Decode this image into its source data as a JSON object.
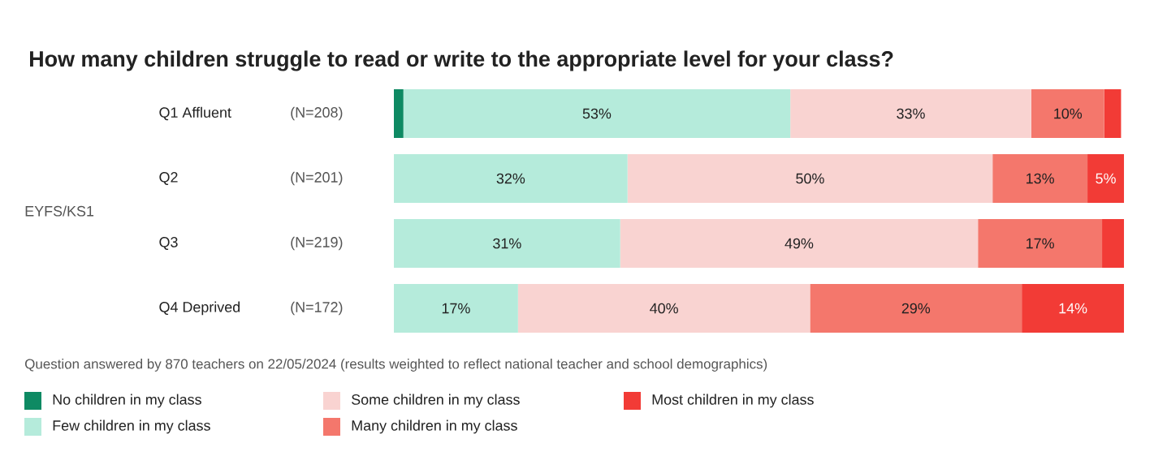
{
  "chart_data": {
    "type": "bar",
    "orientation": "horizontal",
    "stacked": true,
    "title": "How many children struggle to read or write to the appropriate level for your class?",
    "categories": [
      "Q1 Affluent",
      "Q2",
      "Q3",
      "Q4 Deprived"
    ],
    "series": [
      {
        "name": "No children in my class",
        "color": "#0e8a63",
        "values": [
          1.3,
          0,
          0,
          0
        ],
        "value_labels": [
          null,
          null,
          null,
          null
        ]
      },
      {
        "name": "Few children in my class",
        "color": "#b5ebdb",
        "values": [
          53,
          32,
          31,
          17
        ],
        "value_labels": [
          "53%",
          "32%",
          "31%",
          "17%"
        ]
      },
      {
        "name": "Some children in my class",
        "color": "#f9d3d1",
        "values": [
          33,
          50,
          49,
          40
        ],
        "value_labels": [
          "33%",
          "50%",
          "49%",
          "40%"
        ]
      },
      {
        "name": "Many children in my class",
        "color": "#f4776c",
        "values": [
          10,
          13,
          17,
          29
        ],
        "value_labels": [
          "10%",
          "13%",
          "17%",
          "29%"
        ]
      },
      {
        "name": "Most children in my class",
        "color": "#f23b36",
        "values": [
          2.3,
          5,
          3,
          14
        ],
        "value_labels": [
          null,
          "5%",
          null,
          "14%"
        ]
      }
    ],
    "xlim": [
      0,
      100
    ],
    "tick_labels": "y",
    "legend": "bottom",
    "annotations": [
      "EYFS/KS1",
      "(N=208)",
      "(N=201)",
      "(N=219)",
      "(N=172)",
      "Question answered by 870 teachers on 22/05/2024 (results weighted to reflect national teacher and school demographics)"
    ]
  }
}
